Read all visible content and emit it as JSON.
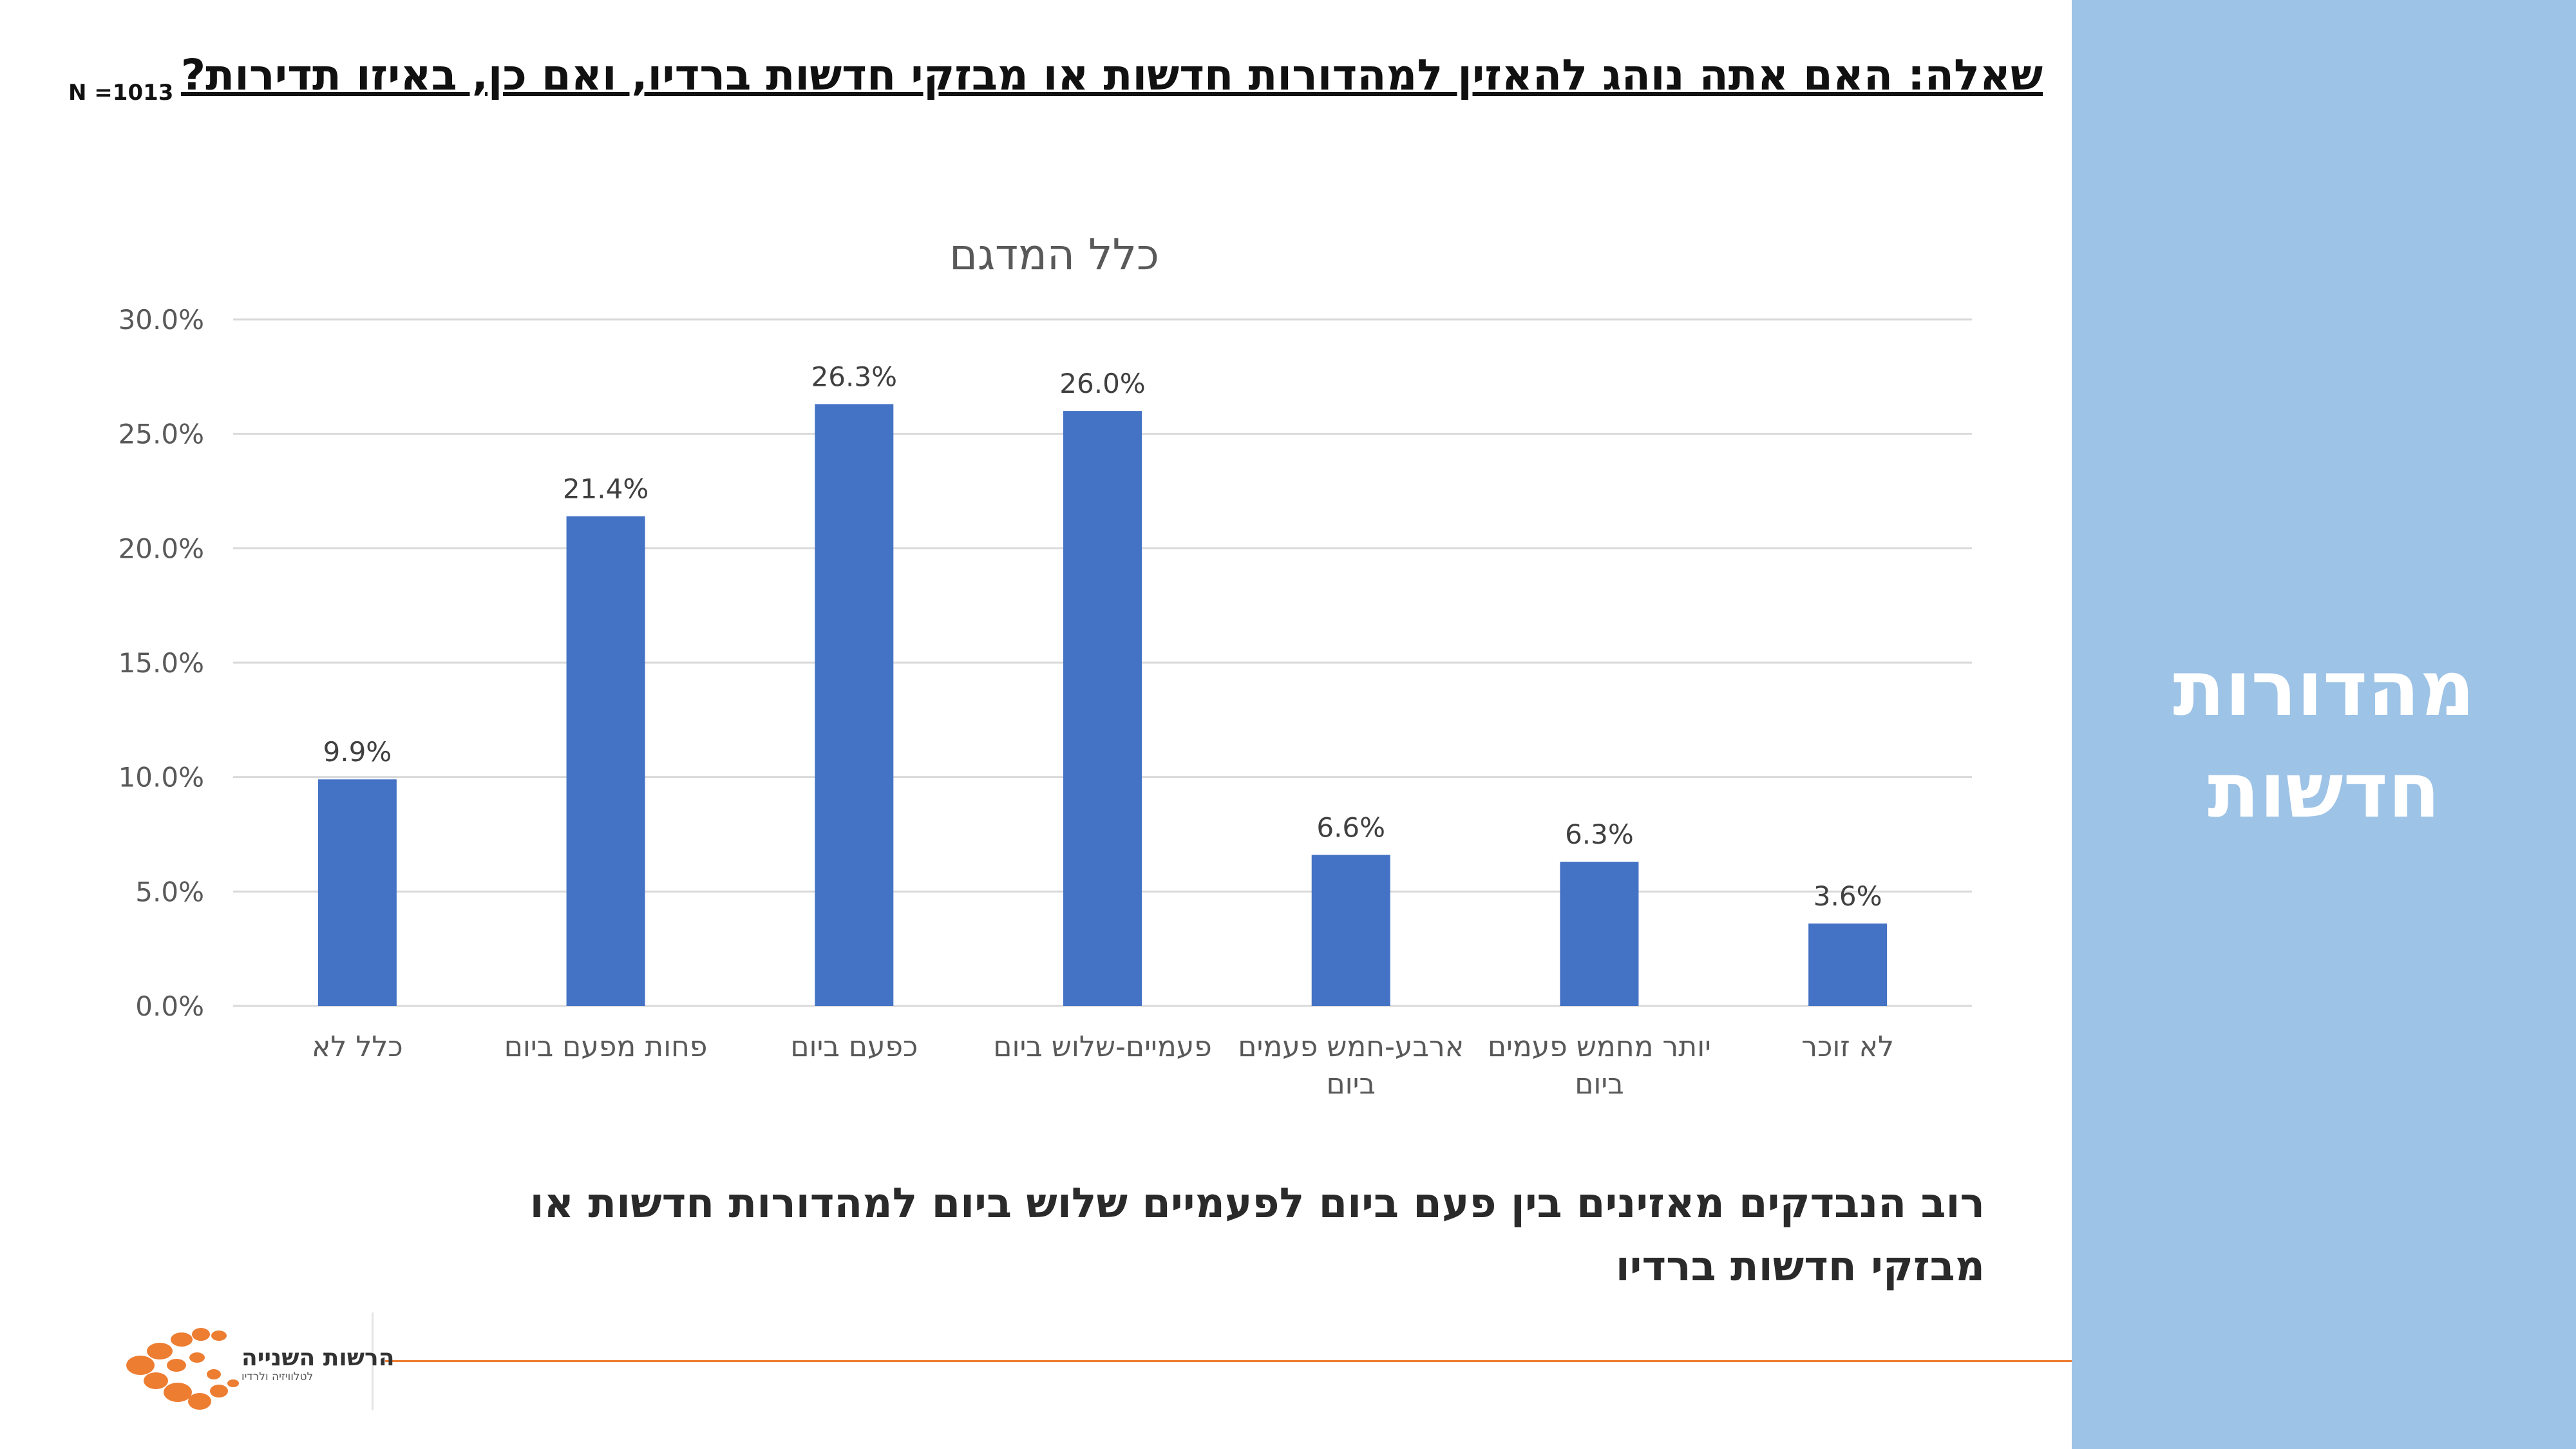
{
  "slide": {
    "question": "שאלה: האם אתה נוהג להאזין למהדורות חדשות או מבזקי חדשות ברדיו, ואם כן, באיזו תדירות?",
    "sample_size": "N =1013",
    "side_title_line1": "מהדורות",
    "side_title_line2": "חדשות",
    "summary_line1": "רוב הנבדקים מאזינים בין פעם ביום לפעמיים שלוש ביום למהדורות חדשות או",
    "summary_line2": "מבזקי חדשות ברדיו",
    "logo_text": "הרשות השנייה",
    "logo_subtext": "לטלוויזיה ולרדיו"
  },
  "colors": {
    "bar": "#4472c4",
    "side_panel": "#9dc3e6",
    "accent_line": "#ed7d31",
    "grid": "#d9d9d9",
    "axis_text": "#595959",
    "logo": "#ed7d31"
  },
  "chart_data": {
    "type": "bar",
    "title": "כלל המדגם",
    "categories": [
      [
        "כלל לא"
      ],
      [
        "פחות מפעם ביום"
      ],
      [
        "כפעם ביום"
      ],
      [
        "פעמיים-שלוש ביום"
      ],
      [
        "ארבע-חמש פעמים",
        "ביום"
      ],
      [
        "יותר מחמש פעמים",
        "ביום"
      ],
      [
        "לא זוכר"
      ]
    ],
    "series": [
      {
        "values": [
          9.9,
          21.4,
          26.3,
          26.0,
          6.6,
          6.3,
          3.6
        ]
      }
    ],
    "data_labels": [
      "9.9%",
      "21.4%",
      "26.3%",
      "26.0%",
      "6.6%",
      "6.3%",
      "3.6%"
    ],
    "yticks": [
      "0.0%",
      "5.0%",
      "10.0%",
      "15.0%",
      "20.0%",
      "25.0%",
      "30.0%"
    ],
    "ylim": [
      0,
      30
    ],
    "grid": true,
    "legend": "none"
  }
}
